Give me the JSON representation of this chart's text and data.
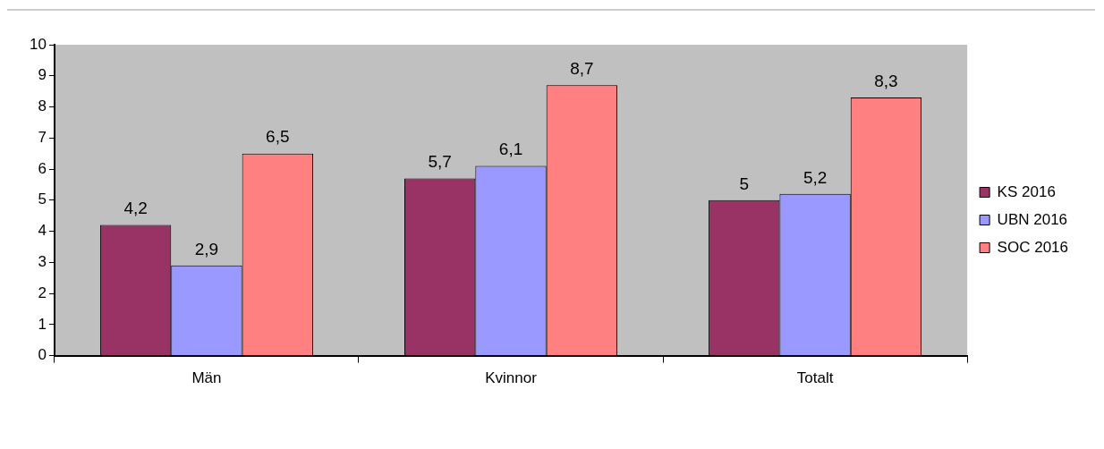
{
  "chart_data": {
    "type": "bar",
    "categories": [
      "Män",
      "Kvinnor",
      "Totalt"
    ],
    "series": [
      {
        "name": "KS 2016",
        "color": "#993366",
        "values": [
          4.2,
          5.7,
          5
        ],
        "value_labels": [
          "4,2",
          "5,7",
          "5"
        ]
      },
      {
        "name": "UBN 2016",
        "color": "#9999ff",
        "values": [
          2.9,
          6.1,
          5.2
        ],
        "value_labels": [
          "2,9",
          "6,1",
          "5,2"
        ]
      },
      {
        "name": "SOC 2016",
        "color": "#ff8080",
        "values": [
          6.5,
          8.7,
          8.3
        ],
        "value_labels": [
          "6,5",
          "8,7",
          "8,3"
        ]
      }
    ],
    "ylim": [
      0,
      10
    ],
    "yticks": [
      0,
      1,
      2,
      3,
      4,
      5,
      6,
      7,
      8,
      9,
      10
    ],
    "grid": false,
    "legend": "right"
  }
}
